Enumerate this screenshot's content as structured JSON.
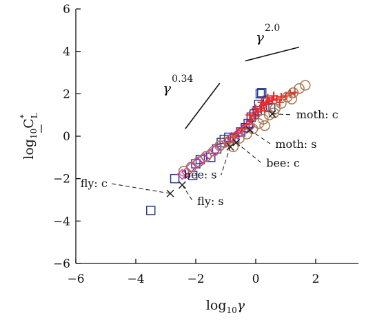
{
  "chart_data": {
    "type": "scatter",
    "xlabel": {
      "prefix": "log",
      "sub": "10",
      "symbol": "γ"
    },
    "ylabel": {
      "prefix": "log",
      "sub": "10",
      "symbol": "C",
      "sup": "*",
      "symbol_sub": "L"
    },
    "xlim": [
      -6,
      4
    ],
    "ylim": [
      -6,
      6
    ],
    "xticks": [
      -6,
      -4,
      -2,
      0,
      2
    ],
    "yticks": [
      -6,
      -4,
      -2,
      0,
      2,
      4,
      6
    ],
    "grid": false,
    "slope_markers": [
      {
        "base": "γ",
        "exponent": "0.34",
        "x1": -2.35,
        "y1": 0.35,
        "x2": -1.2,
        "y2": 2.5
      },
      {
        "base": "γ",
        "exponent": "2.0",
        "x1": -0.35,
        "y1": 3.55,
        "x2": 1.45,
        "y2": 4.2
      }
    ],
    "annotations": [
      {
        "text": "moth: c",
        "x": 0.55,
        "y": 1.05,
        "tx": 1.35,
        "ty": 0.85
      },
      {
        "text": "moth: s",
        "x": -0.2,
        "y": 0.3,
        "tx": 0.65,
        "ty": -0.55
      },
      {
        "text": "bee: c",
        "x": -0.65,
        "y": -0.3,
        "tx": 0.35,
        "ty": -1.45
      },
      {
        "text": "bee: s",
        "x": -0.85,
        "y": -0.5,
        "tx": -1.25,
        "ty": -2.0
      },
      {
        "text": "fly: c",
        "x": -2.85,
        "y": -2.7,
        "tx": -4.9,
        "ty": -2.4
      },
      {
        "text": "fly: s",
        "x": -2.45,
        "y": -2.3,
        "tx": -1.95,
        "ty": -3.25
      }
    ],
    "series": [
      {
        "marker": "square",
        "color": "#2b3a8f",
        "points": [
          [
            -3.5,
            -3.5
          ],
          [
            -2.7,
            -2.0
          ],
          [
            -2.1,
            -1.85
          ],
          [
            -2.0,
            -1.3
          ],
          [
            -1.85,
            -1.1
          ],
          [
            -1.5,
            -1.0
          ],
          [
            -1.3,
            -0.6
          ],
          [
            -1.15,
            -0.3
          ],
          [
            -1.05,
            -0.15
          ],
          [
            -0.9,
            -0.05
          ],
          [
            -0.7,
            -0.1
          ],
          [
            -0.5,
            0.2
          ],
          [
            -0.35,
            0.4
          ],
          [
            -0.25,
            0.6
          ],
          [
            -0.15,
            0.9
          ],
          [
            -0.05,
            1.05
          ],
          [
            0.05,
            1.2
          ],
          [
            0.1,
            1.5
          ],
          [
            0.15,
            2.0
          ],
          [
            0.2,
            2.05
          ],
          [
            0.3,
            1.4
          ],
          [
            0.4,
            1.7
          ],
          [
            0.5,
            1.35
          ]
        ]
      },
      {
        "marker": "diamond",
        "color": "#cc2fb4",
        "points": [
          [
            -2.45,
            -1.8
          ],
          [
            -2.3,
            -1.7
          ],
          [
            -2.15,
            -1.45
          ],
          [
            -1.95,
            -1.25
          ],
          [
            -1.75,
            -1.05
          ],
          [
            -1.55,
            -0.85
          ],
          [
            -1.35,
            -0.65
          ],
          [
            -1.15,
            -0.45
          ],
          [
            -0.95,
            -0.25
          ],
          [
            -0.8,
            -0.05
          ],
          [
            -0.6,
            0.1
          ],
          [
            -0.4,
            0.3
          ],
          [
            -0.2,
            0.45
          ]
        ]
      },
      {
        "marker": "plus",
        "color": "#ee2a2a",
        "points": [
          [
            -0.9,
            -0.3
          ],
          [
            -0.75,
            -0.05
          ],
          [
            -0.6,
            0.15
          ],
          [
            -0.45,
            0.35
          ],
          [
            -0.3,
            0.55
          ],
          [
            -0.15,
            0.75
          ],
          [
            -0.05,
            0.95
          ],
          [
            0.05,
            1.15
          ],
          [
            0.15,
            1.3
          ],
          [
            0.25,
            1.45
          ],
          [
            0.35,
            1.55
          ],
          [
            0.45,
            1.65
          ],
          [
            0.55,
            1.7
          ],
          [
            0.7,
            1.75
          ],
          [
            0.85,
            1.85
          ],
          [
            1.0,
            1.9
          ],
          [
            1.15,
            2.0
          ],
          [
            1.3,
            2.05
          ],
          [
            0.2,
            1.6
          ],
          [
            0.4,
            1.8
          ],
          [
            0.6,
            1.9
          ],
          [
            -0.2,
            1.0
          ],
          [
            0.0,
            1.3
          ],
          [
            0.3,
            1.2
          ],
          [
            0.8,
            1.6
          ]
        ]
      },
      {
        "marker": "circle",
        "color": "#a8774e",
        "points": [
          [
            -2.4,
            -1.65
          ],
          [
            -2.15,
            -1.45
          ],
          [
            -1.9,
            -1.2
          ],
          [
            -1.65,
            -0.95
          ],
          [
            -1.4,
            -0.7
          ],
          [
            -1.2,
            -0.45
          ],
          [
            -1.05,
            -0.3
          ],
          [
            -0.75,
            -0.5
          ],
          [
            -0.55,
            -0.1
          ],
          [
            -0.3,
            0.1
          ],
          [
            -0.1,
            0.35
          ],
          [
            0.1,
            0.6
          ],
          [
            0.25,
            0.8
          ],
          [
            0.45,
            1.0
          ],
          [
            0.65,
            1.3
          ],
          [
            0.85,
            1.55
          ],
          [
            1.05,
            1.85
          ],
          [
            1.25,
            2.05
          ],
          [
            1.45,
            2.25
          ],
          [
            1.65,
            2.4
          ],
          [
            0.3,
            0.5
          ],
          [
            0.6,
            1.1
          ],
          [
            -0.85,
            -0.2
          ],
          [
            1.2,
            1.75
          ]
        ]
      }
    ]
  }
}
